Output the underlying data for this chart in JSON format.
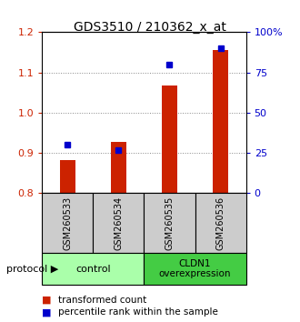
{
  "title": "GDS3510 / 210362_x_at",
  "samples": [
    "GSM260533",
    "GSM260534",
    "GSM260535",
    "GSM260536"
  ],
  "transformed_count": [
    0.882,
    0.928,
    1.068,
    1.155
  ],
  "percentile_rank": [
    30,
    27,
    80,
    90
  ],
  "ylim_left": [
    0.8,
    1.2
  ],
  "ylim_right": [
    0,
    100
  ],
  "yticks_left": [
    0.8,
    0.9,
    1.0,
    1.1,
    1.2
  ],
  "yticks_right": [
    0,
    25,
    50,
    75,
    100
  ],
  "ytick_labels_right": [
    "0",
    "25",
    "50",
    "75",
    "100%"
  ],
  "bar_color": "#cc2200",
  "dot_color": "#0000cc",
  "grid_color": "#888888",
  "bg_plot": "#ffffff",
  "bg_sample_row": "#cccccc",
  "bg_control": "#aaffaa",
  "bg_overexpression": "#44cc44",
  "protocol_label": "protocol",
  "control_label": "control",
  "overexpression_label": "CLDN1\noverexpression",
  "legend_red_label": "transformed count",
  "legend_blue_label": "percentile rank within the sample",
  "title_fontsize": 10,
  "tick_fontsize": 8,
  "label_fontsize": 8,
  "bar_width": 0.3
}
